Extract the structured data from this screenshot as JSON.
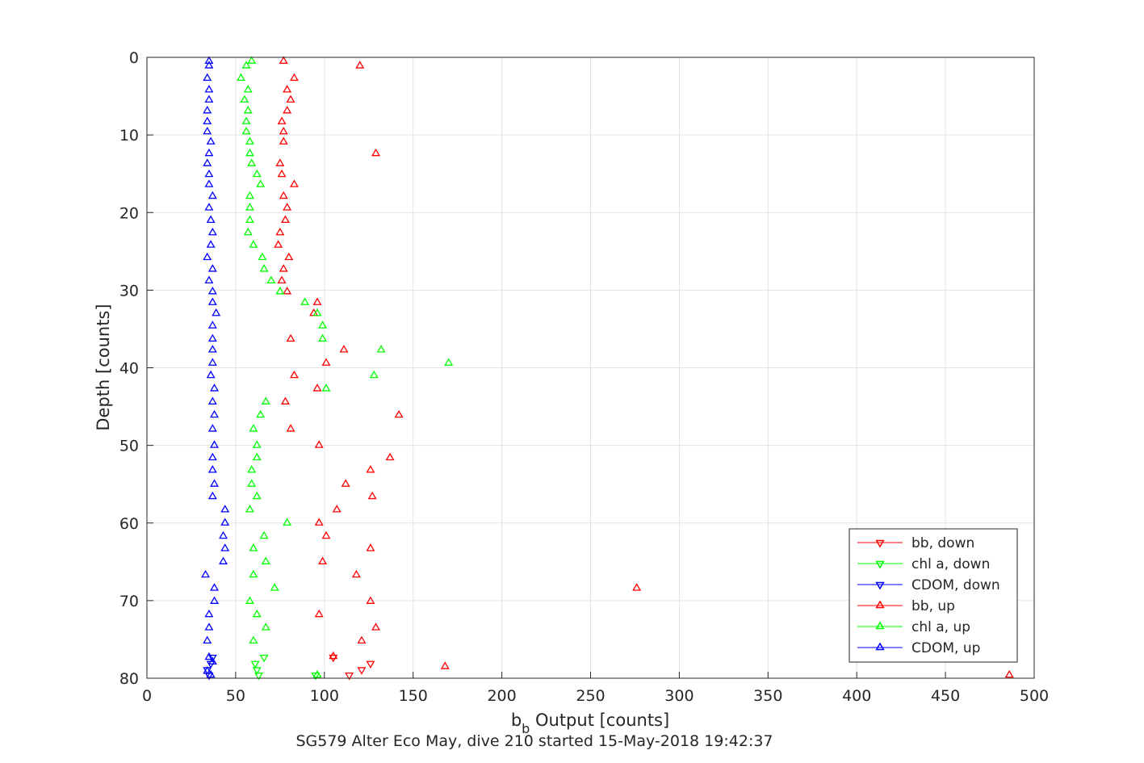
{
  "chart_data": {
    "type": "scatter",
    "title": "",
    "xlabel_main": "b",
    "xlabel_sub": "b",
    "xlabel_rest": " Output [counts]",
    "ylabel": "Depth [counts]",
    "caption": "SG579 Alter Eco May, dive 210 started 15-May-2018 19:42:37",
    "xlim": [
      0,
      500
    ],
    "ylim": [
      0,
      80
    ],
    "y_reversed": true,
    "xticks": [
      0,
      50,
      100,
      150,
      200,
      250,
      300,
      350,
      400,
      450,
      500
    ],
    "yticks": [
      0,
      10,
      20,
      30,
      40,
      50,
      60,
      70,
      80
    ],
    "grid": true,
    "legend_position": "bottom-right",
    "series": [
      {
        "name": "bb, down",
        "color": "#ff0000",
        "marker": "triangle-down",
        "points": [
          [
            105,
            77.3
          ],
          [
            126,
            78.1
          ],
          [
            121,
            78.9
          ],
          [
            114,
            79.6
          ]
        ]
      },
      {
        "name": "chl a, down",
        "color": "#00ff00",
        "marker": "triangle-down",
        "points": [
          [
            66,
            77.3
          ],
          [
            61,
            78.1
          ],
          [
            62,
            78.9
          ],
          [
            63,
            79.6
          ],
          [
            95,
            79.6
          ]
        ]
      },
      {
        "name": "CDOM, down",
        "color": "#0000ff",
        "marker": "triangle-down",
        "points": [
          [
            37,
            77.3
          ],
          [
            36,
            78.1
          ],
          [
            34,
            78.9
          ],
          [
            35,
            79.6
          ]
        ]
      },
      {
        "name": "bb, up",
        "color": "#ff0000",
        "marker": "triangle-up",
        "points": [
          [
            77,
            0.5
          ],
          [
            120,
            1.1
          ],
          [
            83,
            2.7
          ],
          [
            79,
            4.2
          ],
          [
            81,
            5.5
          ],
          [
            79,
            6.9
          ],
          [
            76,
            8.3
          ],
          [
            77,
            9.6
          ],
          [
            77,
            10.9
          ],
          [
            129,
            12.4
          ],
          [
            75,
            13.7
          ],
          [
            76,
            15.1
          ],
          [
            83,
            16.4
          ],
          [
            77,
            17.9
          ],
          [
            79,
            19.4
          ],
          [
            78,
            21.0
          ],
          [
            75,
            22.6
          ],
          [
            74,
            24.2
          ],
          [
            80,
            25.8
          ],
          [
            77,
            27.3
          ],
          [
            76,
            28.8
          ],
          [
            79,
            30.2
          ],
          [
            96,
            31.6
          ],
          [
            94,
            33.0
          ],
          [
            81,
            36.3
          ],
          [
            111,
            37.7
          ],
          [
            101,
            39.4
          ],
          [
            83,
            41.0
          ],
          [
            96,
            42.7
          ],
          [
            78,
            44.4
          ],
          [
            142,
            46.1
          ],
          [
            81,
            47.9
          ],
          [
            97,
            50.0
          ],
          [
            137,
            51.6
          ],
          [
            126,
            53.2
          ],
          [
            112,
            55.0
          ],
          [
            127,
            56.6
          ],
          [
            107,
            58.3
          ],
          [
            97,
            60.0
          ],
          [
            101,
            61.7
          ],
          [
            126,
            63.3
          ],
          [
            99,
            65.0
          ],
          [
            118,
            66.7
          ],
          [
            276,
            68.4
          ],
          [
            126,
            70.1
          ],
          [
            97,
            71.8
          ],
          [
            129,
            73.5
          ],
          [
            121,
            75.2
          ],
          [
            105,
            77.2
          ],
          [
            168,
            78.5
          ],
          [
            486,
            79.6
          ]
        ]
      },
      {
        "name": "chl a, up",
        "color": "#00ff00",
        "marker": "triangle-up",
        "points": [
          [
            59,
            0.5
          ],
          [
            56,
            1.1
          ],
          [
            53,
            2.7
          ],
          [
            57,
            4.2
          ],
          [
            55,
            5.5
          ],
          [
            57,
            6.9
          ],
          [
            56,
            8.3
          ],
          [
            56,
            9.6
          ],
          [
            58,
            10.9
          ],
          [
            58,
            12.4
          ],
          [
            59,
            13.7
          ],
          [
            62,
            15.1
          ],
          [
            64,
            16.4
          ],
          [
            58,
            17.9
          ],
          [
            58,
            19.4
          ],
          [
            58,
            21.0
          ],
          [
            57,
            22.6
          ],
          [
            60,
            24.2
          ],
          [
            65,
            25.8
          ],
          [
            66,
            27.3
          ],
          [
            70,
            28.8
          ],
          [
            75,
            30.2
          ],
          [
            89,
            31.6
          ],
          [
            96,
            33.0
          ],
          [
            99,
            34.6
          ],
          [
            99,
            36.3
          ],
          [
            132,
            37.7
          ],
          [
            170,
            39.4
          ],
          [
            128,
            41.0
          ],
          [
            101,
            42.7
          ],
          [
            67,
            44.4
          ],
          [
            64,
            46.1
          ],
          [
            60,
            47.9
          ],
          [
            62,
            50.0
          ],
          [
            62,
            51.6
          ],
          [
            59,
            53.2
          ],
          [
            59,
            55.0
          ],
          [
            62,
            56.6
          ],
          [
            58,
            58.3
          ],
          [
            79,
            60.0
          ],
          [
            66,
            61.7
          ],
          [
            60,
            63.3
          ],
          [
            67,
            65.0
          ],
          [
            60,
            66.7
          ],
          [
            72,
            68.4
          ],
          [
            58,
            70.1
          ],
          [
            62,
            71.8
          ],
          [
            67,
            73.5
          ],
          [
            60,
            75.2
          ],
          [
            96,
            79.6
          ]
        ]
      },
      {
        "name": "CDOM, up",
        "color": "#0000ff",
        "marker": "triangle-up",
        "points": [
          [
            35,
            0.5
          ],
          [
            35,
            1.1
          ],
          [
            34,
            2.7
          ],
          [
            35,
            4.2
          ],
          [
            35,
            5.5
          ],
          [
            34,
            6.9
          ],
          [
            34,
            8.3
          ],
          [
            34,
            9.6
          ],
          [
            36,
            10.9
          ],
          [
            35,
            12.4
          ],
          [
            34,
            13.7
          ],
          [
            35,
            15.1
          ],
          [
            35,
            16.4
          ],
          [
            37,
            17.9
          ],
          [
            35,
            19.4
          ],
          [
            36,
            21.0
          ],
          [
            37,
            22.6
          ],
          [
            36,
            24.2
          ],
          [
            34,
            25.8
          ],
          [
            37,
            27.3
          ],
          [
            35,
            28.8
          ],
          [
            37,
            30.2
          ],
          [
            37,
            31.6
          ],
          [
            39,
            33.0
          ],
          [
            37,
            34.6
          ],
          [
            37,
            36.3
          ],
          [
            37,
            37.7
          ],
          [
            37,
            39.4
          ],
          [
            36,
            41.0
          ],
          [
            38,
            42.7
          ],
          [
            37,
            44.4
          ],
          [
            38,
            46.1
          ],
          [
            37,
            47.9
          ],
          [
            38,
            50.0
          ],
          [
            37,
            51.6
          ],
          [
            37,
            53.2
          ],
          [
            38,
            55.0
          ],
          [
            37,
            56.6
          ],
          [
            44,
            58.3
          ],
          [
            44,
            60.0
          ],
          [
            43,
            61.7
          ],
          [
            44,
            63.3
          ],
          [
            43,
            65.0
          ],
          [
            33,
            66.7
          ],
          [
            38,
            68.4
          ],
          [
            38,
            70.1
          ],
          [
            35,
            71.8
          ],
          [
            35,
            73.5
          ],
          [
            34,
            75.2
          ],
          [
            35,
            77.3
          ],
          [
            37,
            77.9
          ],
          [
            34,
            79.1
          ],
          [
            36,
            79.6
          ]
        ]
      }
    ]
  }
}
